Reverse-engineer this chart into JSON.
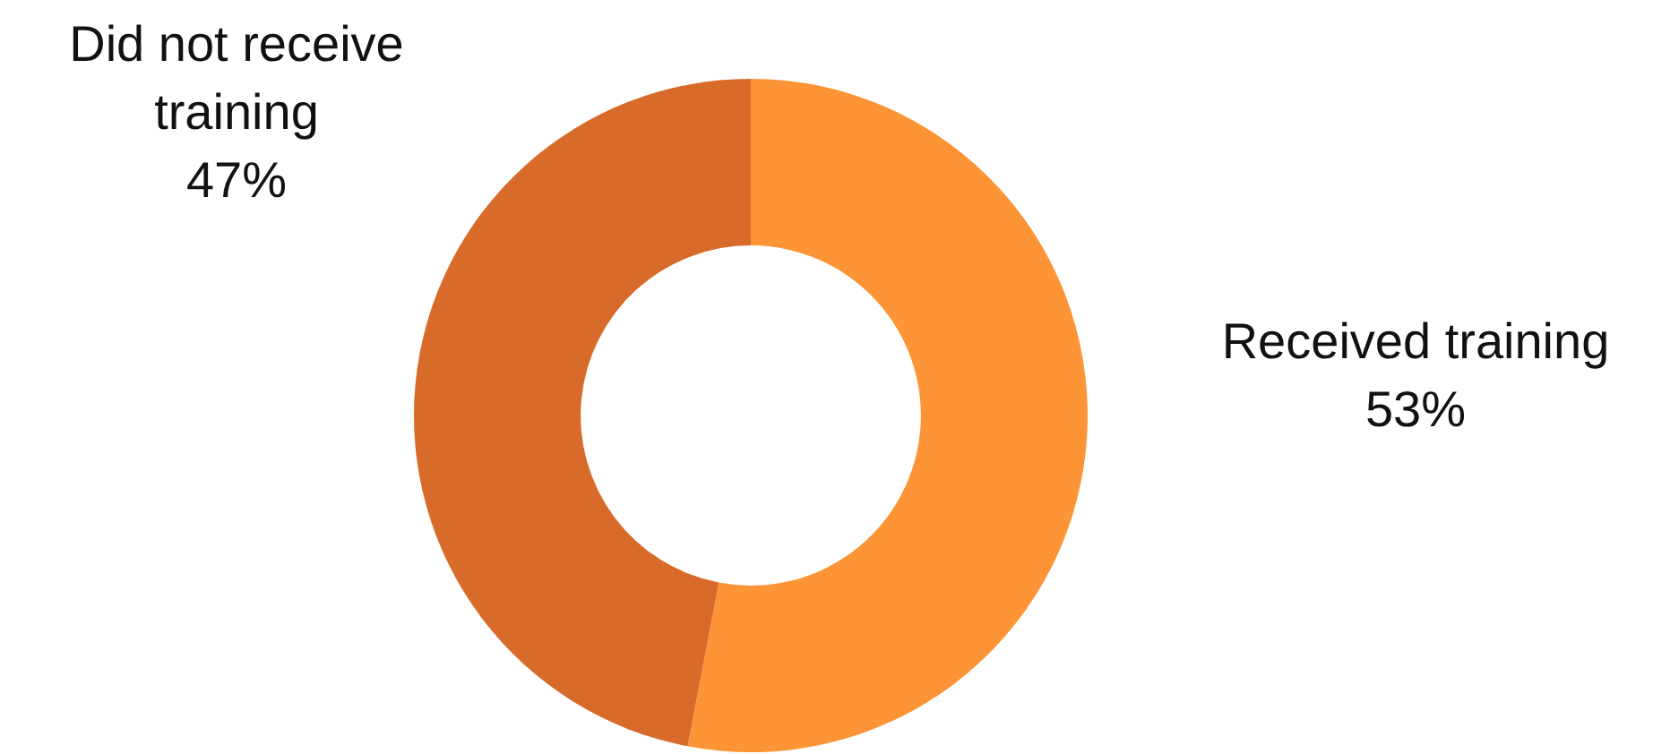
{
  "chart_data": {
    "type": "donut",
    "categories": [
      "Received training",
      "Did not receive training"
    ],
    "values": [
      53,
      47
    ],
    "colors": [
      "#fd9435",
      "#d86b2a"
    ],
    "value_labels": [
      "53%",
      "47%"
    ]
  }
}
